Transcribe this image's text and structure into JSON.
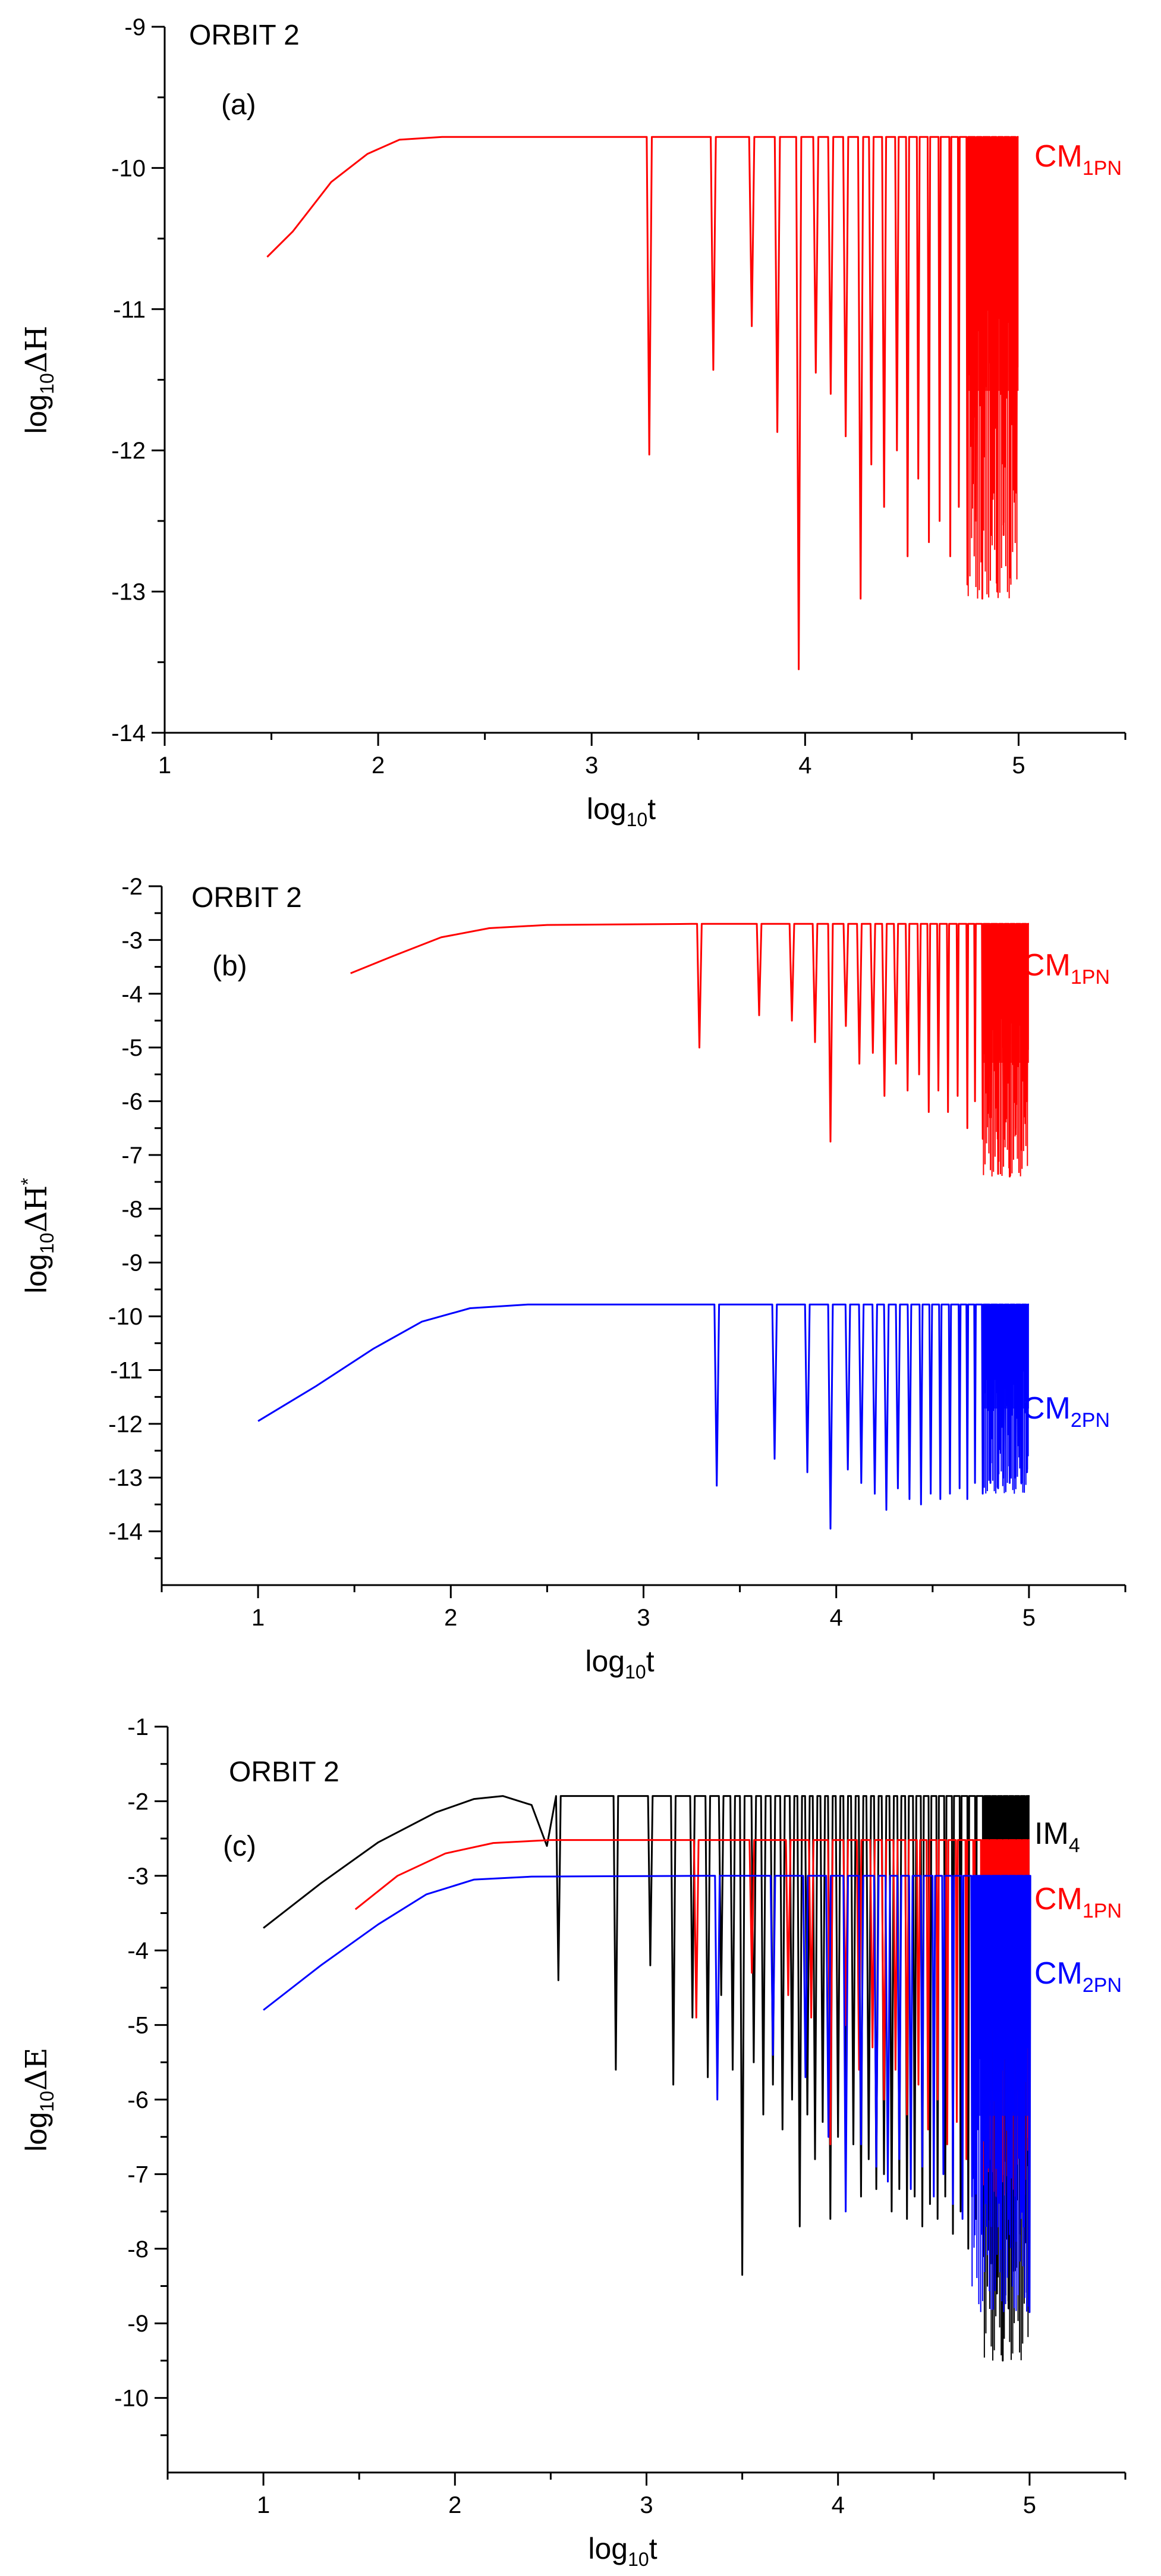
{
  "chart_data": [
    {
      "type": "line",
      "panel_id": "a",
      "title": "ORBIT 2",
      "panel_label": "(a)",
      "xlabel": {
        "base": "log",
        "sub": "10",
        "main": "t"
      },
      "ylabel": {
        "base": "log",
        "sub": "10",
        "main": "ΔH",
        "sup": ""
      },
      "xlim": [
        1,
        5.5
      ],
      "ylim": [
        -14,
        -9
      ],
      "xticks": [
        1,
        2,
        3,
        4,
        5
      ],
      "yticks": [
        -9,
        -10,
        -11,
        -12,
        -13,
        -14
      ],
      "series": [
        {
          "name": "CM1PN",
          "label": {
            "main": "CM",
            "sub": "1PN"
          },
          "color": "#ff0000",
          "rise": [
            [
              1.48,
              -10.63
            ],
            [
              1.6,
              -10.45
            ],
            [
              1.78,
              -10.1
            ],
            [
              1.95,
              -9.9
            ],
            [
              2.1,
              -9.8
            ],
            [
              2.3,
              -9.78
            ],
            [
              3.2,
              -9.78
            ]
          ],
          "plateau": -9.78,
          "osc_start": 3.2,
          "end": 5.0,
          "dips": [
            [
              3.27,
              -12.03
            ],
            [
              3.57,
              -11.43
            ],
            [
              3.75,
              -11.12
            ],
            [
              3.87,
              -11.87
            ],
            [
              3.97,
              -13.55
            ],
            [
              4.05,
              -11.45
            ],
            [
              4.12,
              -11.6
            ],
            [
              4.19,
              -11.9
            ],
            [
              4.26,
              -13.05
            ],
            [
              4.31,
              -12.1
            ],
            [
              4.37,
              -12.4
            ],
            [
              4.43,
              -12.0
            ],
            [
              4.48,
              -12.75
            ],
            [
              4.53,
              -12.2
            ],
            [
              4.58,
              -12.65
            ],
            [
              4.63,
              -12.5
            ],
            [
              4.68,
              -12.75
            ],
            [
              4.72,
              -12.4
            ],
            [
              4.76,
              -12.95
            ],
            [
              4.8,
              -12.5
            ],
            [
              4.83,
              -13.05
            ],
            [
              4.87,
              -12.6
            ],
            [
              4.9,
              -13.0
            ],
            [
              4.93,
              -12.6
            ],
            [
              4.96,
              -12.9
            ],
            [
              4.99,
              -12.3
            ]
          ]
        }
      ]
    },
    {
      "type": "line",
      "panel_id": "b",
      "title": "ORBIT 2",
      "panel_label": "(b)",
      "xlabel": {
        "base": "log",
        "sub": "10",
        "main": "t"
      },
      "ylabel": {
        "base": "log",
        "sub": "10",
        "main": "ΔH",
        "sup": "*"
      },
      "xlim": [
        0.5,
        5.5
      ],
      "ylim": [
        -15,
        -2
      ],
      "xticks": [
        1,
        2,
        3,
        4,
        5
      ],
      "yticks": [
        -2,
        -3,
        -4,
        -5,
        -6,
        -7,
        -8,
        -9,
        -10,
        -11,
        -12,
        -13,
        -14
      ],
      "series": [
        {
          "name": "CM1PN",
          "label": {
            "main": "CM",
            "sub": "1PN"
          },
          "color": "#ff0000",
          "rise": [
            [
              1.48,
              -3.62
            ],
            [
              1.7,
              -3.3
            ],
            [
              1.95,
              -2.95
            ],
            [
              2.2,
              -2.78
            ],
            [
              2.5,
              -2.72
            ],
            [
              3.25,
              -2.7
            ]
          ],
          "plateau": -2.7,
          "osc_start": 3.25,
          "end": 5.0,
          "dips": [
            [
              3.29,
              -5.0
            ],
            [
              3.6,
              -4.4
            ],
            [
              3.77,
              -4.5
            ],
            [
              3.89,
              -4.9
            ],
            [
              3.97,
              -6.75
            ],
            [
              4.05,
              -4.6
            ],
            [
              4.12,
              -5.3
            ],
            [
              4.19,
              -5.1
            ],
            [
              4.25,
              -5.9
            ],
            [
              4.31,
              -5.3
            ],
            [
              4.37,
              -5.8
            ],
            [
              4.43,
              -5.5
            ],
            [
              4.48,
              -6.2
            ],
            [
              4.53,
              -5.8
            ],
            [
              4.58,
              -6.2
            ],
            [
              4.63,
              -5.9
            ],
            [
              4.68,
              -6.5
            ],
            [
              4.72,
              -6.0
            ],
            [
              4.76,
              -6.7
            ],
            [
              4.8,
              -6.3
            ],
            [
              4.84,
              -7.35
            ],
            [
              4.87,
              -6.7
            ],
            [
              4.9,
              -7.4
            ],
            [
              4.93,
              -6.5
            ],
            [
              4.96,
              -6.9
            ],
            [
              4.99,
              -6.0
            ]
          ]
        },
        {
          "name": "CM2PN",
          "label": {
            "main": "CM",
            "sub": "2PN"
          },
          "color": "#0000ff",
          "rise": [
            [
              1.0,
              -11.95
            ],
            [
              1.3,
              -11.3
            ],
            [
              1.6,
              -10.6
            ],
            [
              1.85,
              -10.1
            ],
            [
              2.1,
              -9.85
            ],
            [
              2.4,
              -9.78
            ],
            [
              3.35,
              -9.78
            ]
          ],
          "plateau": -9.78,
          "osc_start": 3.35,
          "end": 5.0,
          "dips": [
            [
              3.38,
              -13.15
            ],
            [
              3.68,
              -12.65
            ],
            [
              3.85,
              -12.9
            ],
            [
              3.97,
              -13.95
            ],
            [
              4.06,
              -12.85
            ],
            [
              4.13,
              -13.1
            ],
            [
              4.2,
              -13.3
            ],
            [
              4.26,
              -13.6
            ],
            [
              4.32,
              -13.2
            ],
            [
              4.38,
              -13.4
            ],
            [
              4.44,
              -13.5
            ],
            [
              4.49,
              -13.3
            ],
            [
              4.54,
              -13.4
            ],
            [
              4.59,
              -13.3
            ],
            [
              4.64,
              -13.2
            ],
            [
              4.68,
              -13.4
            ],
            [
              4.72,
              -13.1
            ],
            [
              4.76,
              -13.3
            ],
            [
              4.8,
              -13.1
            ],
            [
              4.84,
              -13.2
            ],
            [
              4.87,
              -13.0
            ],
            [
              4.9,
              -13.1
            ],
            [
              4.93,
              -13.0
            ],
            [
              4.96,
              -13.1
            ],
            [
              4.99,
              -12.9
            ]
          ]
        }
      ]
    },
    {
      "type": "line",
      "panel_id": "c",
      "title": "ORBIT 2",
      "panel_label": "(c)",
      "xlabel": {
        "base": "log",
        "sub": "10",
        "main": "t"
      },
      "ylabel": {
        "base": "log",
        "sub": "10",
        "main": "ΔE",
        "sup": ""
      },
      "xlim": [
        0.5,
        5.5
      ],
      "ylim": [
        -11,
        -1
      ],
      "xticks": [
        1,
        2,
        3,
        4,
        5
      ],
      "yticks": [
        -1,
        -2,
        -3,
        -4,
        -5,
        -6,
        -7,
        -8,
        -9,
        -10
      ],
      "series": [
        {
          "name": "IM4",
          "label": {
            "main": "IM",
            "sub": "4"
          },
          "color": "#000000",
          "rise": [
            [
              1.0,
              -3.7
            ],
            [
              1.3,
              -3.1
            ],
            [
              1.6,
              -2.55
            ],
            [
              1.9,
              -2.15
            ],
            [
              2.1,
              -1.97
            ],
            [
              2.25,
              -1.93
            ],
            [
              2.4,
              -2.05
            ],
            [
              2.48,
              -2.6
            ]
          ],
          "plateau": -1.93,
          "osc_start": 2.5,
          "end": 5.0,
          "dips": [
            [
              2.54,
              -4.4
            ],
            [
              2.84,
              -5.6
            ],
            [
              3.02,
              -4.2
            ],
            [
              3.14,
              -5.8
            ],
            [
              3.24,
              -4.9
            ],
            [
              3.32,
              -5.7
            ],
            [
              3.39,
              -4.6
            ],
            [
              3.45,
              -5.6
            ],
            [
              3.5,
              -8.35
            ],
            [
              3.56,
              -5.5
            ],
            [
              3.61,
              -6.2
            ],
            [
              3.66,
              -5.8
            ],
            [
              3.71,
              -6.4
            ],
            [
              3.76,
              -6.0
            ],
            [
              3.8,
              -7.7
            ],
            [
              3.84,
              -6.2
            ],
            [
              3.88,
              -6.8
            ],
            [
              3.92,
              -6.3
            ],
            [
              3.96,
              -7.6
            ],
            [
              4.0,
              -6.5
            ],
            [
              4.04,
              -7.0
            ],
            [
              4.08,
              -6.6
            ],
            [
              4.12,
              -7.3
            ],
            [
              4.16,
              -6.8
            ],
            [
              4.2,
              -7.2
            ],
            [
              4.24,
              -7.0
            ],
            [
              4.28,
              -7.5
            ],
            [
              4.32,
              -7.2
            ],
            [
              4.36,
              -7.6
            ],
            [
              4.4,
              -7.3
            ],
            [
              4.44,
              -7.7
            ],
            [
              4.48,
              -7.4
            ],
            [
              4.52,
              -7.6
            ],
            [
              4.56,
              -7.3
            ],
            [
              4.6,
              -7.8
            ],
            [
              4.64,
              -7.5
            ],
            [
              4.68,
              -8.0
            ],
            [
              4.72,
              -7.6
            ],
            [
              4.76,
              -8.1
            ],
            [
              4.8,
              -8.2
            ],
            [
              4.83,
              -8.6
            ],
            [
              4.86,
              -9.5
            ],
            [
              4.89,
              -8.8
            ],
            [
              4.92,
              -8.3
            ],
            [
              4.95,
              -7.8
            ],
            [
              4.98,
              -7.5
            ]
          ]
        },
        {
          "name": "CM1PN",
          "label": {
            "main": "CM",
            "sub": "1PN"
          },
          "color": "#ff0000",
          "rise": [
            [
              1.48,
              -3.45
            ],
            [
              1.7,
              -3.0
            ],
            [
              1.95,
              -2.7
            ],
            [
              2.2,
              -2.56
            ],
            [
              2.5,
              -2.52
            ],
            [
              3.2,
              -2.52
            ]
          ],
          "plateau": -2.52,
          "osc_start": 3.2,
          "end": 5.0,
          "dips": [
            [
              3.26,
              -4.9
            ],
            [
              3.55,
              -4.3
            ],
            [
              3.74,
              -4.6
            ],
            [
              3.86,
              -4.9
            ],
            [
              3.96,
              -6.6
            ],
            [
              4.04,
              -5.0
            ],
            [
              4.11,
              -5.6
            ],
            [
              4.18,
              -5.3
            ],
            [
              4.24,
              -6.0
            ],
            [
              4.3,
              -5.6
            ],
            [
              4.36,
              -6.2
            ],
            [
              4.42,
              -5.8
            ],
            [
              4.47,
              -6.4
            ],
            [
              4.52,
              -6.0
            ],
            [
              4.57,
              -6.6
            ],
            [
              4.62,
              -6.3
            ],
            [
              4.67,
              -6.8
            ],
            [
              4.71,
              -6.5
            ],
            [
              4.75,
              -7.0
            ],
            [
              4.79,
              -6.8
            ],
            [
              4.83,
              -7.3
            ],
            [
              4.86,
              -7.0
            ],
            [
              4.89,
              -7.3
            ],
            [
              4.93,
              -6.9
            ],
            [
              4.96,
              -7.1
            ],
            [
              4.99,
              -6.5
            ]
          ]
        },
        {
          "name": "CM2PN",
          "label": {
            "main": "CM",
            "sub": "2PN"
          },
          "color": "#0000ff",
          "rise": [
            [
              1.0,
              -4.8
            ],
            [
              1.3,
              -4.2
            ],
            [
              1.6,
              -3.65
            ],
            [
              1.85,
              -3.25
            ],
            [
              2.1,
              -3.05
            ],
            [
              2.4,
              -3.01
            ],
            [
              3.3,
              -3.0
            ]
          ],
          "plateau": -3.0,
          "osc_start": 3.3,
          "end": 5.0,
          "dips": [
            [
              3.37,
              -6.0
            ],
            [
              3.66,
              -5.4
            ],
            [
              3.83,
              -5.7
            ],
            [
              3.95,
              -6.5
            ],
            [
              4.04,
              -7.5
            ],
            [
              4.12,
              -6.6
            ],
            [
              4.2,
              -6.9
            ],
            [
              4.26,
              -7.1
            ],
            [
              4.32,
              -6.8
            ],
            [
              4.38,
              -7.2
            ],
            [
              4.44,
              -6.9
            ],
            [
              4.5,
              -7.3
            ],
            [
              4.55,
              -7.0
            ],
            [
              4.6,
              -7.4
            ],
            [
              4.65,
              -7.6
            ],
            [
              4.7,
              -7.3
            ],
            [
              4.75,
              -7.8
            ],
            [
              4.8,
              -7.7
            ],
            [
              4.85,
              -8.0
            ],
            [
              4.89,
              -7.6
            ],
            [
              4.93,
              -7.9
            ],
            [
              4.97,
              -7.7
            ],
            [
              5.0,
              -8.85
            ]
          ]
        }
      ]
    }
  ]
}
